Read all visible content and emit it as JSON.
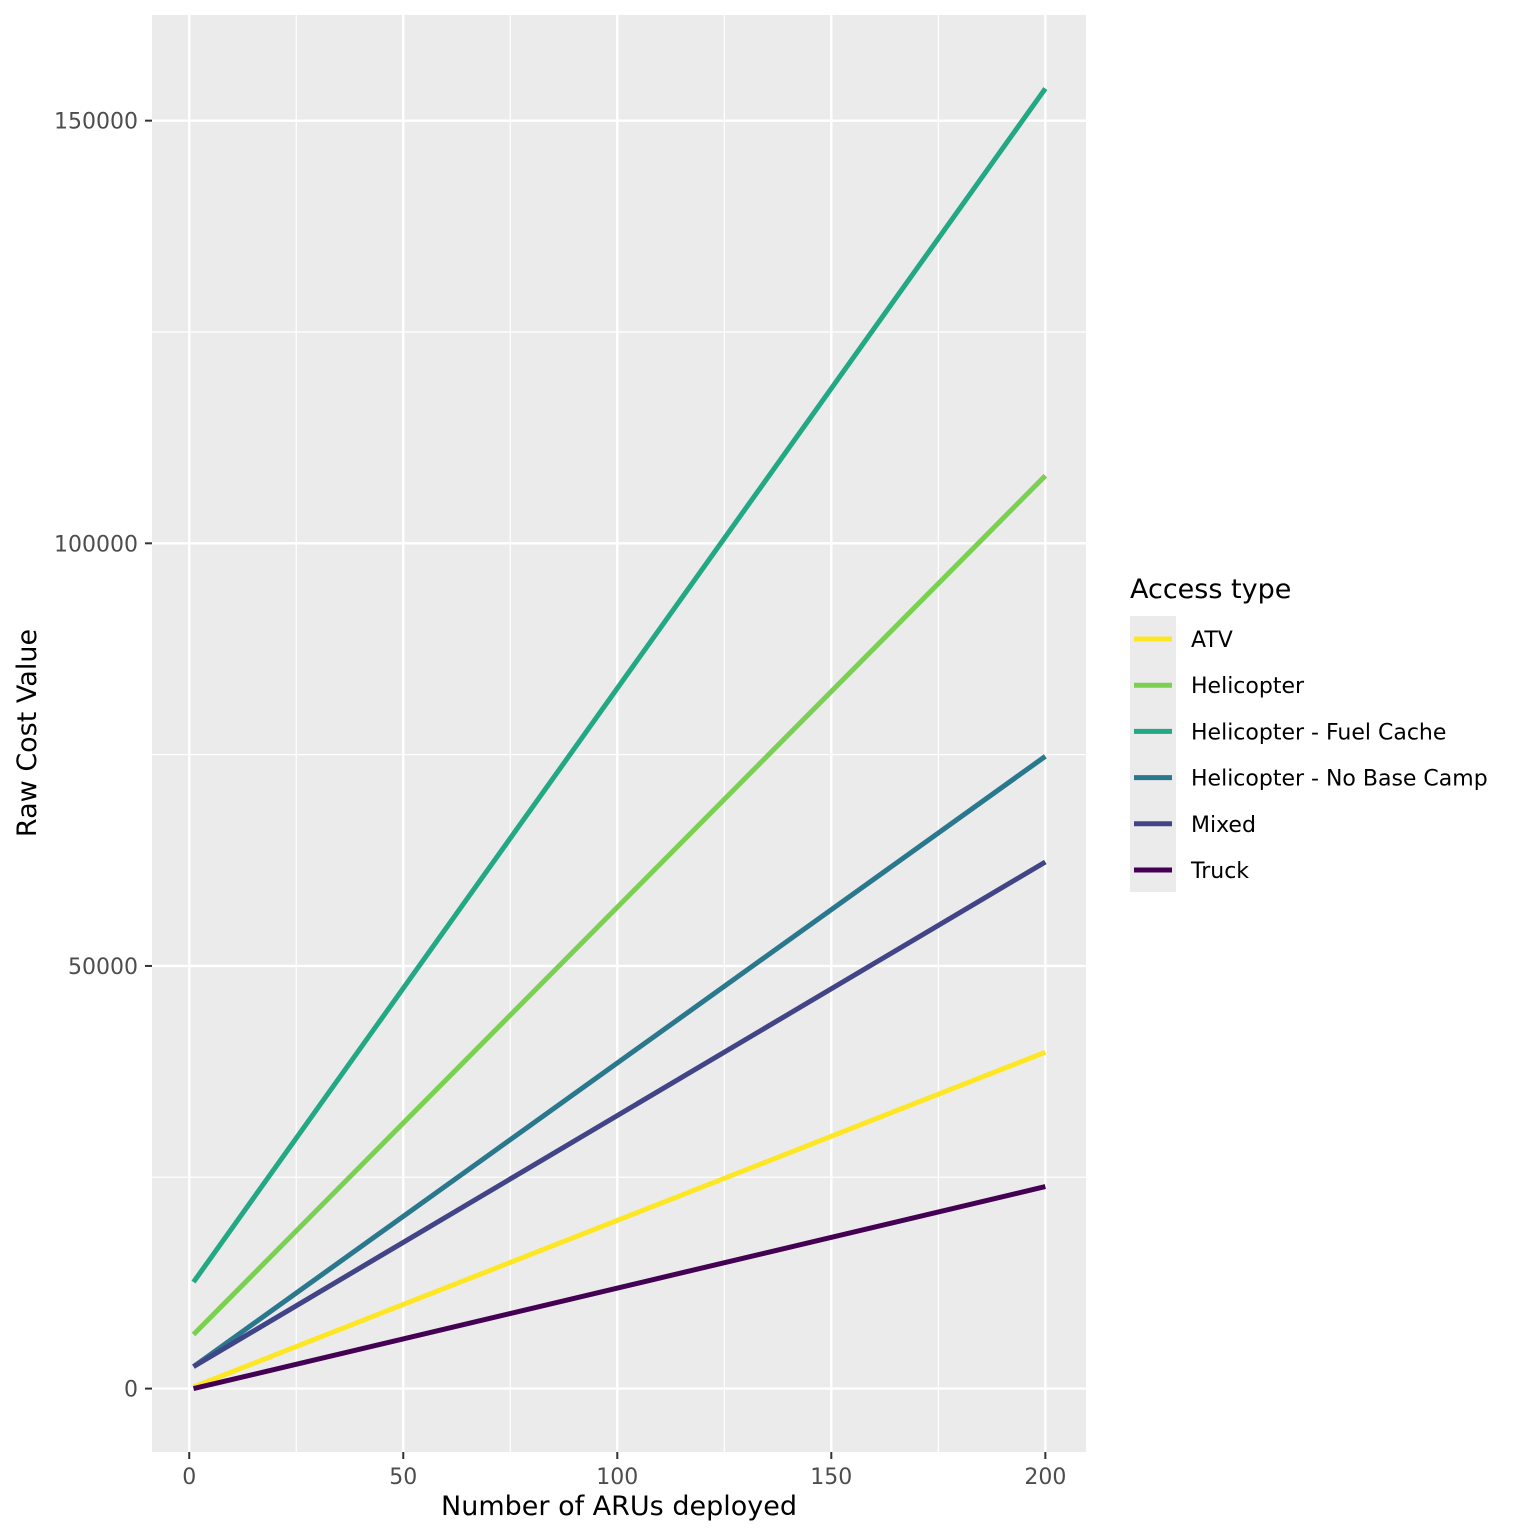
{
  "chart_data": {
    "type": "line",
    "title": "",
    "xlabel": "Number of ARUs deployed",
    "ylabel": "Raw Cost Value",
    "xlim": [
      -8.7,
      209.5
    ],
    "ylim": [
      -7500,
      162500
    ],
    "x_ticks": [
      0,
      50,
      100,
      150,
      200
    ],
    "x_tick_labels": [
      "0",
      "50",
      "100",
      "150",
      "200"
    ],
    "x_minor_ticks": [
      25,
      75,
      125,
      175
    ],
    "y_ticks": [
      0,
      50000,
      100000,
      150000
    ],
    "y_tick_labels": [
      "0",
      "50000",
      "100000",
      "150000"
    ],
    "y_minor_ticks": [
      25000,
      75000,
      125000
    ],
    "grid": true,
    "legend": {
      "title": "Access type",
      "placement": "right"
    },
    "series": [
      {
        "name": "ATV",
        "color": "#FDE725",
        "x": [
          1,
          200
        ],
        "values": [
          200,
          39800
        ]
      },
      {
        "name": "Helicopter",
        "color": "#7AD151",
        "x": [
          1,
          200
        ],
        "values": [
          6400,
          108000
        ]
      },
      {
        "name": "Helicopter - Fuel Cache",
        "color": "#22A884",
        "x": [
          1,
          200
        ],
        "values": [
          12600,
          153800
        ]
      },
      {
        "name": "Helicopter - No Base Camp",
        "color": "#2A788E",
        "x": [
          1,
          200
        ],
        "values": [
          2600,
          74800
        ]
      },
      {
        "name": "Mixed",
        "color": "#414487",
        "x": [
          1,
          200
        ],
        "values": [
          2600,
          62300
        ]
      },
      {
        "name": "Truck",
        "color": "#440154",
        "x": [
          1,
          200
        ],
        "values": [
          0,
          23900
        ]
      }
    ]
  }
}
